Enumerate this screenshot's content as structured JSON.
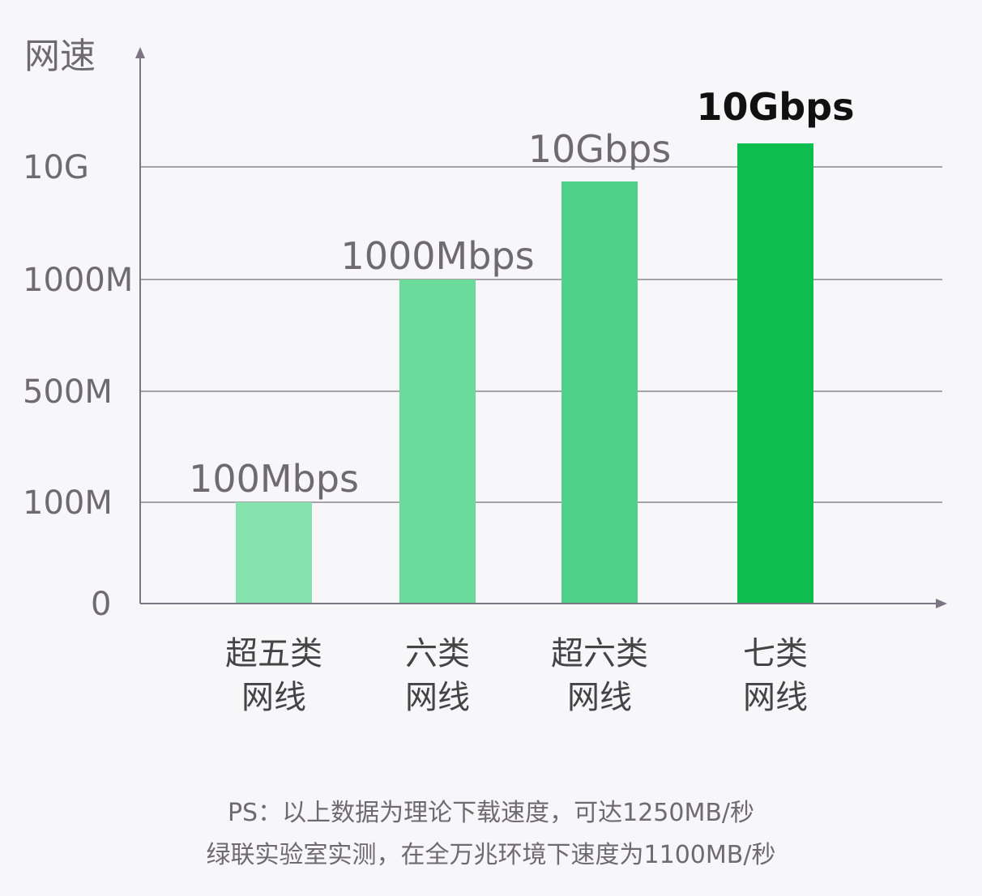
{
  "chart_data": {
    "type": "bar",
    "ylabel": "网速",
    "y_ticks": [
      "0",
      "100M",
      "500M",
      "1000M",
      "10G"
    ],
    "categories": [
      [
        "超五类",
        "网线"
      ],
      [
        "六类",
        "网线"
      ],
      [
        "超六类",
        "网线"
      ],
      [
        "七类",
        "网线"
      ]
    ],
    "value_labels": [
      "100Mbps",
      "1000Mbps",
      "10Gbps",
      "10Gbps"
    ],
    "values_mbps": [
      100,
      1000,
      10000,
      10000
    ],
    "highlight_index": 3,
    "bar_colors": [
      "#86e3ae",
      "#6bdb9c",
      "#4fd189",
      "#0dbd4e"
    ],
    "axis_color": "#7a7580",
    "grid": true
  },
  "footnote": {
    "line1": "PS：以上数据为理论下载速度，可达1250MB/秒",
    "line2": "绿联实验室实测，在全万兆环境下速度为1100MB/秒"
  }
}
